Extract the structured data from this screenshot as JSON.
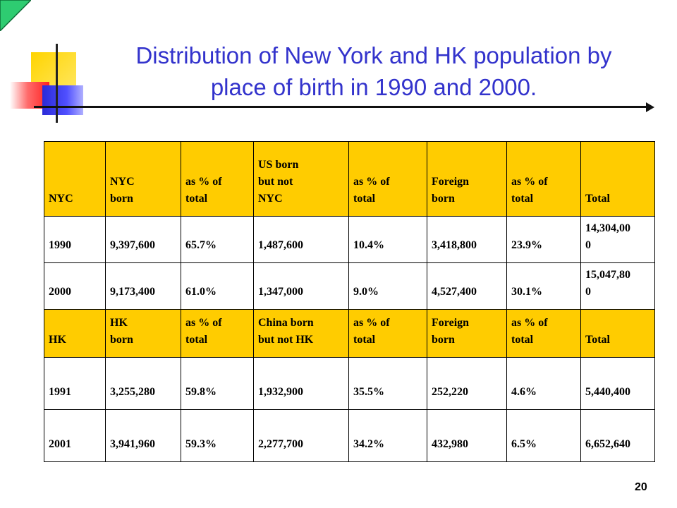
{
  "title_line1": "Distribution of New York and HK population by",
  "title_line2": "place of birth in 1990 and 2000.",
  "nyc_header": [
    "NYC",
    "NYC\nborn",
    "as % of\ntotal",
    "US born\nbut not\nNYC",
    "as % of\ntotal",
    "Foreign\nborn",
    "as % of\ntotal",
    "Total"
  ],
  "nyc_rows": [
    [
      "1990",
      "9,397,600",
      "65.7%",
      "1,487,600",
      "10.4%",
      "3,418,800",
      "23.9%",
      "14,304,00\n0"
    ],
    [
      "2000",
      "9,173,400",
      "61.0%",
      "1,347,000",
      "9.0%",
      "4,527,400",
      "30.1%",
      "15,047,80\n0"
    ]
  ],
  "hk_header": [
    "HK",
    "HK\nborn",
    "as % of\ntotal",
    "China born\nbut not HK",
    "as % of\ntotal",
    "Foreign\nborn",
    "as % of\ntotal",
    "Total"
  ],
  "hk_rows": [
    [
      "1991",
      "3,255,280",
      "59.8%",
      "1,932,900",
      "35.5%",
      "252,220",
      "4.6%",
      "5,440,400"
    ],
    [
      "2001",
      "3,941,960",
      "59.3%",
      "2,277,700",
      "34.2%",
      "432,980",
      "6.5%",
      "6,652,640"
    ]
  ],
  "page_number": "20",
  "colors": {
    "title": "#3333cc",
    "header_fill": "#ffcc00",
    "corner": "#2ecc71"
  }
}
